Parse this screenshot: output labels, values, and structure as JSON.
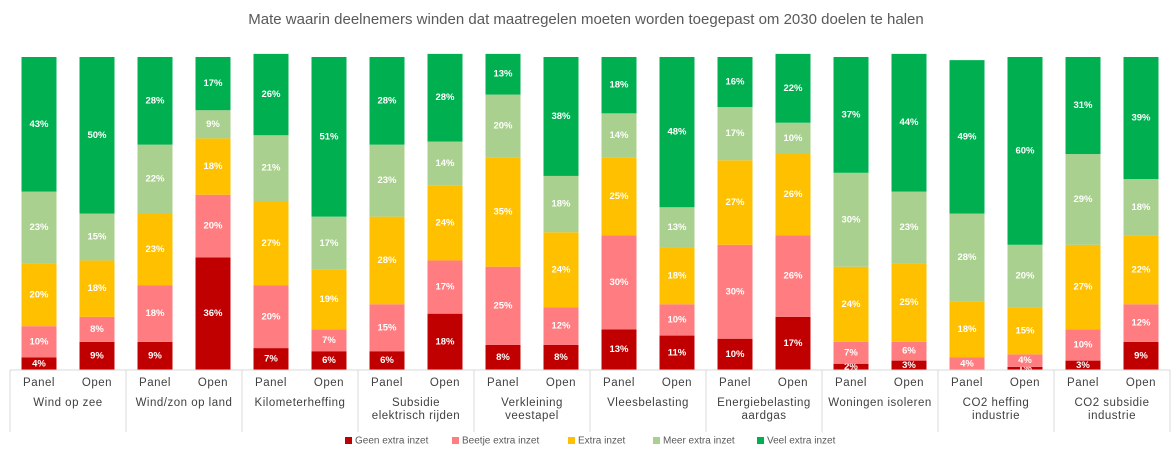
{
  "chart_data": {
    "type": "stacked_bar",
    "title": "Mate waarin deelnemers winden dat maatregelen moeten worden toegepast om 2030 doelen te halen",
    "categories": [
      "Panel",
      "Open",
      "Panel",
      "Open",
      "Panel",
      "Open",
      "Panel",
      "Open",
      "Panel",
      "Open",
      "Panel",
      "Open",
      "Panel",
      "Open",
      "Panel",
      "Open",
      "Panel",
      "Open",
      "Panel",
      "Open"
    ],
    "groups": [
      [
        "Wind op zee"
      ],
      [
        "Wind/zon op land"
      ],
      [
        "Kilometerheffing"
      ],
      [
        "Subsidie",
        "elektrisch rijden"
      ],
      [
        "Verkleining",
        "veestapel"
      ],
      [
        "Vleesbelasting"
      ],
      [
        "Energiebelasting",
        "aardgas"
      ],
      [
        "Woningen isoleren"
      ],
      [
        "CO2 heffing",
        "industrie"
      ],
      [
        "CO2 subsidie",
        "industrie"
      ]
    ],
    "ylim": [
      0,
      100
    ],
    "series": [
      {
        "name": "Geen extra inzet",
        "color": "#c00000",
        "values": [
          4,
          9,
          9,
          36,
          7,
          6,
          6,
          18,
          8,
          8,
          13,
          11,
          10,
          17,
          2,
          3,
          0,
          1,
          3,
          9
        ],
        "value_labels": [
          "4%",
          "9%",
          "9%",
          "36%",
          "7%",
          "6%",
          "6%",
          "18%",
          "8%",
          "8%",
          "13%",
          "11%",
          "10%",
          "17%",
          "2%",
          "3%",
          "0%",
          "1%",
          "3%",
          "9%"
        ]
      },
      {
        "name": "Beetje extra inzet",
        "color": "#ff7c80",
        "values": [
          10,
          8,
          18,
          20,
          20,
          7,
          15,
          17,
          25,
          12,
          30,
          10,
          30,
          26,
          7,
          6,
          4,
          4,
          10,
          12
        ],
        "value_labels": [
          "10%",
          "8%",
          "18%",
          "20%",
          "20%",
          "7%",
          "15%",
          "17%",
          "25%",
          "12%",
          "30%",
          "10%",
          "30%",
          "26%",
          "7%",
          "6%",
          "4%",
          "4%",
          "10%",
          "12%"
        ]
      },
      {
        "name": "Extra inzet",
        "color": "#ffc000",
        "values": [
          20,
          18,
          23,
          18,
          27,
          19,
          28,
          24,
          35,
          24,
          25,
          18,
          27,
          26,
          24,
          25,
          18,
          15,
          27,
          22
        ],
        "value_labels": [
          "20%",
          "18%",
          "23%",
          "18%",
          "27%",
          "19%",
          "28%",
          "24%",
          "35%",
          "24%",
          "25%",
          "18%",
          "27%",
          "26%",
          "24%",
          "25%",
          "18%",
          "15%",
          "27%",
          "22%"
        ]
      },
      {
        "name": "Meer extra inzet",
        "color": "#a9d08e",
        "values": [
          23,
          15,
          22,
          9,
          21,
          17,
          23,
          14,
          20,
          18,
          14,
          13,
          17,
          10,
          30,
          23,
          28,
          20,
          29,
          18
        ],
        "value_labels": [
          "23%",
          "15%",
          "22%",
          "9%",
          "21%",
          "17%",
          "23%",
          "14%",
          "20%",
          "18%",
          "14%",
          "13%",
          "17%",
          "10%",
          "30%",
          "23%",
          "28%",
          "20%",
          "29%",
          "18%"
        ]
      },
      {
        "name": "Veel extra inzet",
        "color": "#00b050",
        "values": [
          43,
          50,
          28,
          17,
          26,
          51,
          28,
          28,
          13,
          38,
          18,
          48,
          16,
          22,
          37,
          44,
          49,
          60,
          31,
          39
        ],
        "value_labels": [
          "43%",
          "50%",
          "28%",
          "17%",
          "26%",
          "51%",
          "28%",
          "28%",
          "13%",
          "38%",
          "18%",
          "48%",
          "16%",
          "22%",
          "37%",
          "44%",
          "49%",
          "60%",
          "31%",
          "39%"
        ]
      }
    ]
  }
}
